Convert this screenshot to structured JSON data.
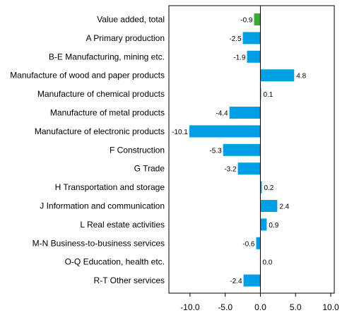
{
  "chart_data": {
    "type": "bar",
    "orientation": "horizontal",
    "categories": [
      "Value added, total",
      "A Primary production",
      "B-E Manufacturing, mining etc.",
      "Manufacture of wood and paper products",
      "Manufacture of chemical products",
      "Manufacture of metal products",
      "Manufacture of electronic products",
      "F Construction",
      "G Trade",
      "H Transportation and storage",
      "J Information and communication",
      "L Real estate activities",
      "M-N Business-to-business services",
      "O-Q Education, health etc.",
      "R-T Other services"
    ],
    "values": [
      -0.9,
      -2.5,
      -1.9,
      4.8,
      0.1,
      -4.4,
      -10.1,
      -5.3,
      -3.2,
      0.2,
      2.4,
      0.9,
      -0.6,
      0.0,
      -2.4
    ],
    "value_labels": [
      "-0.9",
      "-2.5",
      "-1.9",
      "4.8",
      "0.1",
      "-4.4",
      "-10.1",
      "-5.3",
      "-3.2",
      "0.2",
      "2.4",
      "0.9",
      "-0.6",
      "0.0",
      "-2.4"
    ],
    "xlim": [
      -13,
      10.5
    ],
    "xticks": [
      -10,
      -5,
      0,
      5,
      10
    ],
    "xtick_labels": [
      "-10.0",
      "-5.0",
      "0.0",
      "5.0",
      "10.0"
    ],
    "colors": {
      "total": "#3aaa35",
      "default": "#009fe3"
    },
    "grid": false,
    "title": "",
    "xlabel": "",
    "ylabel": ""
  }
}
